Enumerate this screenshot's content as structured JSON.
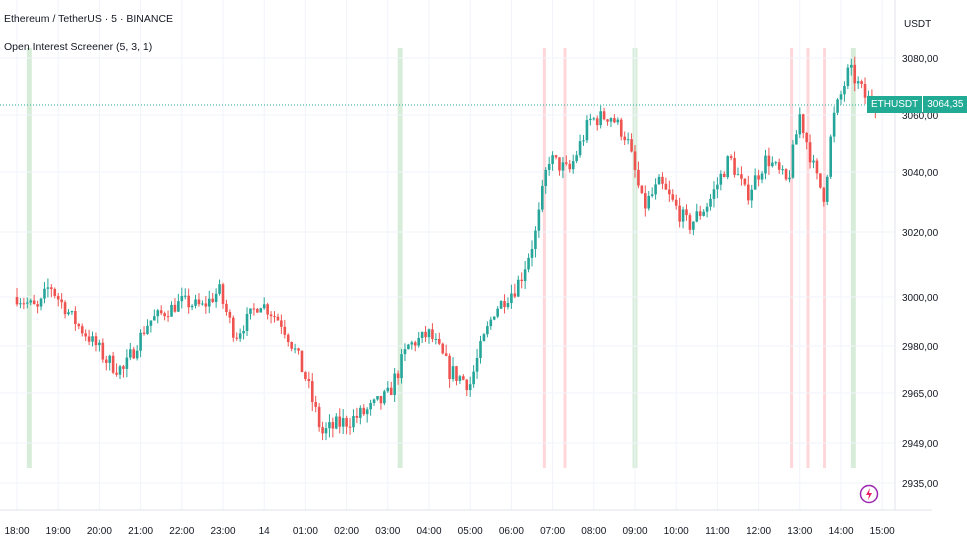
{
  "header": {
    "title": "Ethereum / TetherUS · 5 · BINANCE",
    "indicator": "Open Interest Screener (5, 3, 1)",
    "currency": "USDT"
  },
  "price_tag": {
    "symbol": "ETHUSDT",
    "value": "3064,35"
  },
  "colors": {
    "up": "#26a69a",
    "down": "#ef5350",
    "buy_band": "#c8e6c9",
    "sell_band": "#ffcdd2",
    "line": "#22ab94"
  },
  "icons": {
    "logo": "bolt-icon"
  },
  "chart_data": {
    "type": "candlestick",
    "y_ticks": [
      "3080,00",
      "3060,00",
      "3040,00",
      "3020,00",
      "3000,00",
      "2980,00",
      "2965,00",
      "2949,00",
      "2935,00"
    ],
    "x_ticks": [
      "18:00",
      "19:00",
      "20:00",
      "21:00",
      "22:00",
      "23:00",
      "14",
      "01:00",
      "02:00",
      "03:00",
      "04:00",
      "05:00",
      "06:00",
      "07:00",
      "08:00",
      "09:00",
      "10:00",
      "11:00",
      "12:00",
      "13:00",
      "14:00",
      "15:00"
    ],
    "current_price": 3064.35,
    "green_bands": [
      0.3,
      9.3,
      15.0,
      20.3
    ],
    "red_bands": [
      12.8,
      13.3,
      18.8,
      19.2,
      19.6
    ],
    "keypoints": [
      [
        0.0,
        3000
      ],
      [
        0.5,
        2995
      ],
      [
        0.8,
        3004
      ],
      [
        1.5,
        2988
      ],
      [
        2.2,
        2975
      ],
      [
        2.6,
        2972
      ],
      [
        3.2,
        2990
      ],
      [
        4.0,
        2998
      ],
      [
        4.5,
        2996
      ],
      [
        4.9,
        3002
      ],
      [
        5.3,
        2984
      ],
      [
        5.9,
        2998
      ],
      [
        6.4,
        2990
      ],
      [
        7.0,
        2970
      ],
      [
        7.4,
        2952
      ],
      [
        7.8,
        2955
      ],
      [
        8.2,
        2957
      ],
      [
        8.6,
        2960
      ],
      [
        9.0,
        2964
      ],
      [
        9.5,
        2980
      ],
      [
        10.0,
        2985
      ],
      [
        10.5,
        2972
      ],
      [
        11.0,
        2968
      ],
      [
        11.6,
        2995
      ],
      [
        12.2,
        3005
      ],
      [
        12.6,
        3020
      ],
      [
        12.9,
        3045
      ],
      [
        13.4,
        3040
      ],
      [
        13.9,
        3058
      ],
      [
        14.4,
        3060
      ],
      [
        14.8,
        3052
      ],
      [
        15.2,
        3028
      ],
      [
        15.6,
        3036
      ],
      [
        16.3,
        3022
      ],
      [
        16.8,
        3030
      ],
      [
        17.3,
        3045
      ],
      [
        17.7,
        3032
      ],
      [
        18.2,
        3045
      ],
      [
        18.7,
        3036
      ],
      [
        19.0,
        3060
      ],
      [
        19.4,
        3038
      ],
      [
        19.6,
        3032
      ],
      [
        19.8,
        3058
      ],
      [
        20.2,
        3076
      ],
      [
        20.6,
        3066
      ],
      [
        20.9,
        3064
      ]
    ]
  }
}
